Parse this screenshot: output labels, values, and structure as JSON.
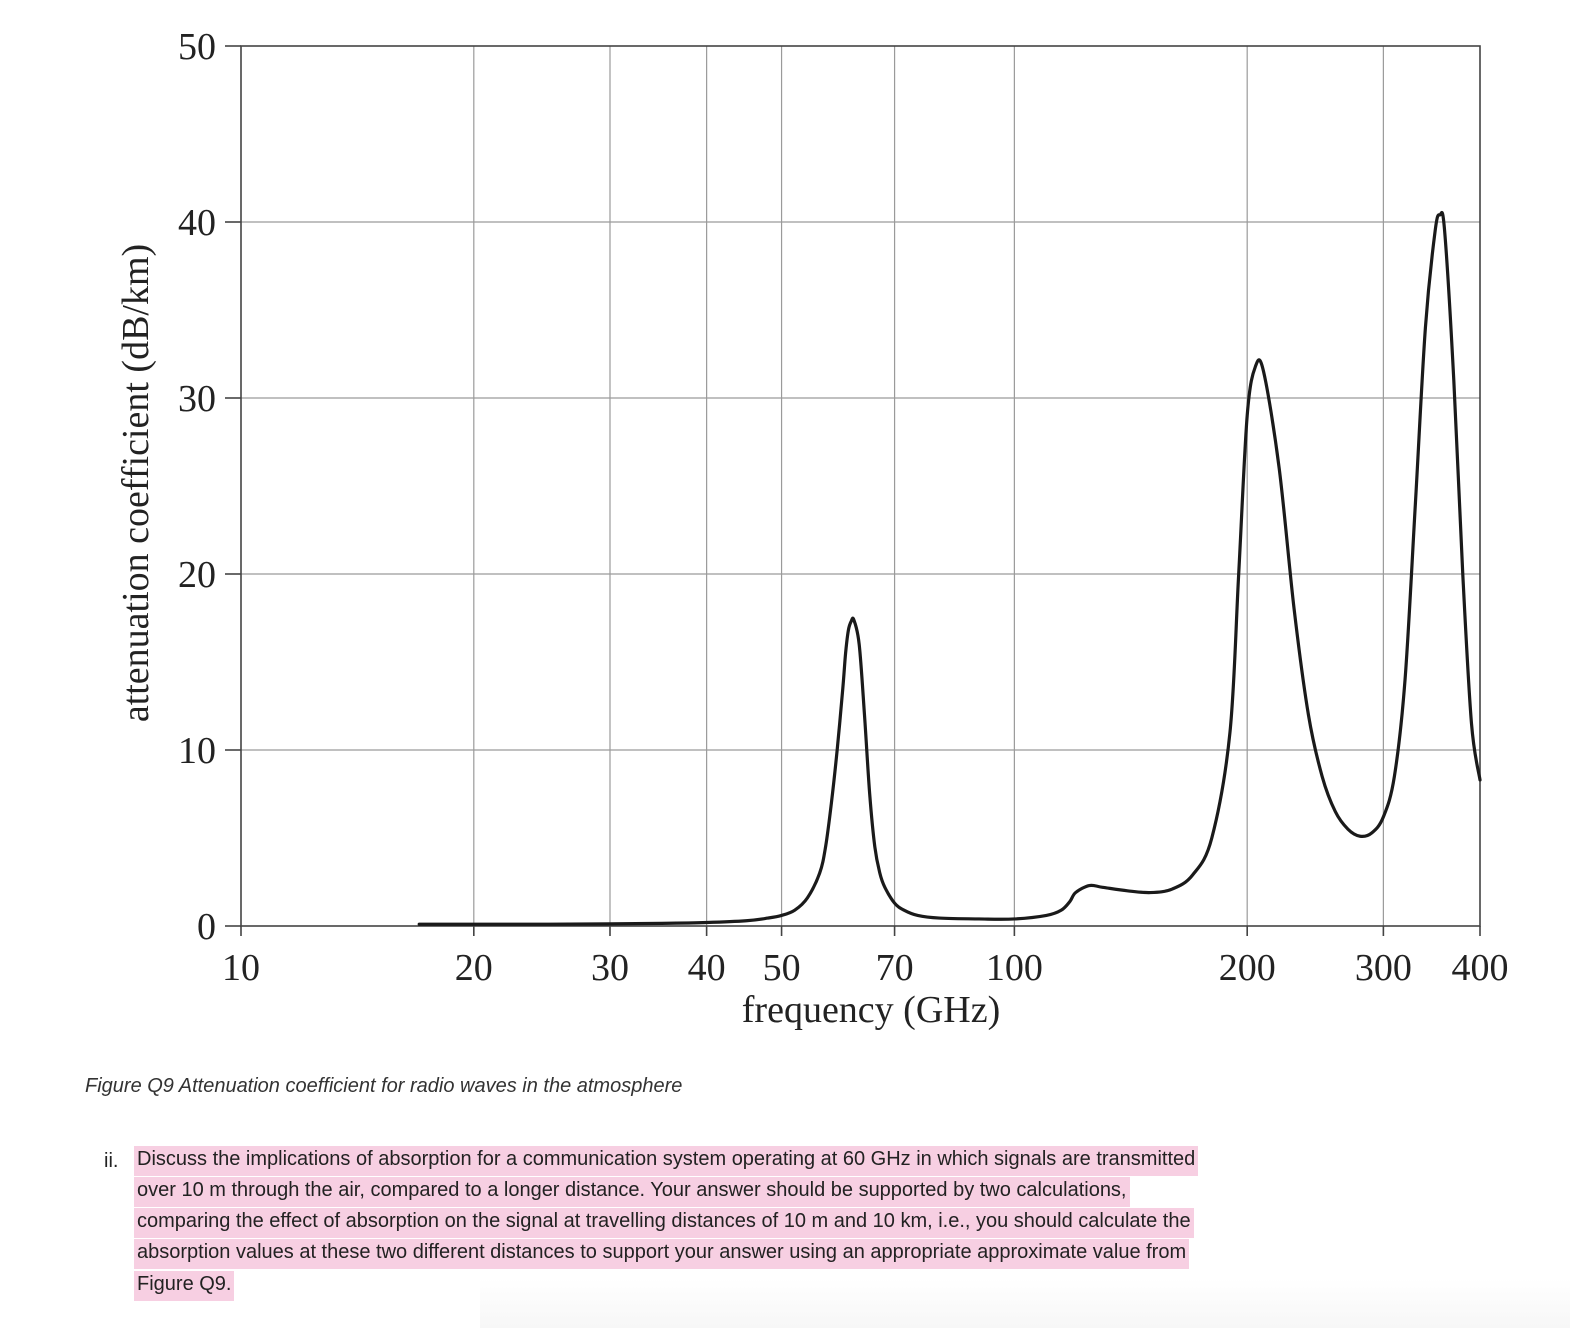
{
  "chart_data": {
    "type": "line",
    "x_scale": "log",
    "xlabel": "frequency (GHz)",
    "ylabel": "attenuation coefficient (dB/km)",
    "xlim": [
      10,
      400
    ],
    "ylim": [
      0,
      50
    ],
    "x_ticks": [
      10,
      20,
      30,
      40,
      50,
      70,
      100,
      200,
      300,
      400
    ],
    "y_ticks": [
      0,
      10,
      20,
      30,
      40,
      50
    ],
    "grid": true,
    "series": [
      {
        "x": [
          17,
          20,
          25,
          30,
          35,
          40,
          45,
          48,
          50,
          52,
          54,
          56,
          57,
          58,
          59,
          60,
          60.5,
          61,
          61.5,
          62,
          63,
          64,
          65,
          66,
          67,
          68,
          70,
          72,
          75,
          80,
          90,
          100,
          110,
          115,
          118,
          120,
          125,
          130,
          140,
          150,
          160,
          170,
          180,
          190,
          195,
          200,
          205,
          210,
          220,
          230,
          240,
          250,
          260,
          270,
          280,
          290,
          300,
          310,
          320,
          330,
          340,
          350,
          355,
          360,
          370,
          380,
          390,
          400
        ],
        "y": [
          0.1,
          0.1,
          0.1,
          0.12,
          0.15,
          0.2,
          0.3,
          0.45,
          0.6,
          0.9,
          1.6,
          3,
          4.5,
          7,
          10,
          13.5,
          15.5,
          16.8,
          17.3,
          17.4,
          16,
          12,
          7.5,
          4.5,
          3,
          2.2,
          1.3,
          0.9,
          0.6,
          0.45,
          0.4,
          0.4,
          0.6,
          0.9,
          1.4,
          1.9,
          2.3,
          2.2,
          2,
          1.9,
          2.1,
          2.9,
          5,
          11,
          20,
          29,
          31.8,
          31.5,
          26,
          18,
          12,
          8.5,
          6.5,
          5.5,
          5.1,
          5.3,
          6.2,
          8.5,
          14,
          24,
          34,
          39.5,
          40.4,
          39.5,
          31,
          20,
          11.5,
          8.3
        ]
      }
    ]
  },
  "caption": "Figure Q9 Attenuation coefficient for radio waves in the atmosphere",
  "question": {
    "number": "ii.",
    "lines": [
      "Discuss the implications of absorption for a communication system operating at 60 GHz in which signals are transmitted",
      "over 10 m through the air, compared to a longer distance. Your answer should be supported by two calculations,",
      "comparing the effect of absorption on the signal at travelling distances of 10 m and 10 km, i.e., you should calculate the",
      "absorption values at these two different distances to support your answer using an appropriate approximate value from",
      "Figure Q9."
    ]
  }
}
